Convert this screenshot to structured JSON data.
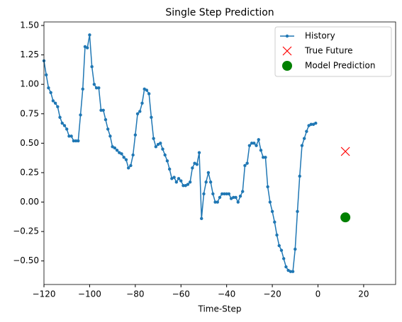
{
  "chart_data": {
    "type": "line",
    "title": "Single Step Prediction",
    "x_label": "Time-Step",
    "series": [
      {
        "name": "History",
        "color": "#1f77b4",
        "marker": "dot-line",
        "x": [
          -120,
          -119,
          -118,
          -117,
          -116,
          -115,
          -114,
          -113,
          -112,
          -111,
          -110,
          -109,
          -108,
          -107,
          -106,
          -105,
          -104,
          -103,
          -102,
          -101,
          -100,
          -99,
          -98,
          -97,
          -96,
          -95,
          -94,
          -93,
          -92,
          -91,
          -90,
          -89,
          -88,
          -87,
          -86,
          -85,
          -84,
          -83,
          -82,
          -81,
          -80,
          -79,
          -78,
          -77,
          -76,
          -75,
          -74,
          -73,
          -72,
          -71,
          -70,
          -69,
          -68,
          -67,
          -66,
          -65,
          -64,
          -63,
          -62,
          -61,
          -60,
          -59,
          -58,
          -57,
          -56,
          -55,
          -54,
          -53,
          -52,
          -51,
          -50,
          -49,
          -48,
          -47,
          -46,
          -45,
          -44,
          -43,
          -42,
          -41,
          -40,
          -39,
          -38,
          -37,
          -36,
          -35,
          -34,
          -33,
          -32,
          -31,
          -30,
          -29,
          -28,
          -27,
          -26,
          -25,
          -24,
          -23,
          -22,
          -21,
          -20,
          -19,
          -18,
          -17,
          -16,
          -15,
          -14,
          -13,
          -12,
          -11,
          -10,
          -9,
          -8,
          -7,
          -6,
          -5,
          -4,
          -3,
          -2,
          -1
        ],
        "values": [
          1.2,
          1.08,
          0.97,
          0.93,
          0.86,
          0.84,
          0.81,
          0.72,
          0.67,
          0.65,
          0.62,
          0.56,
          0.56,
          0.52,
          0.52,
          0.52,
          0.74,
          0.96,
          1.32,
          1.31,
          1.42,
          1.15,
          1.0,
          0.97,
          0.97,
          0.78,
          0.78,
          0.7,
          0.62,
          0.56,
          0.47,
          0.46,
          0.44,
          0.42,
          0.41,
          0.38,
          0.36,
          0.29,
          0.31,
          0.4,
          0.57,
          0.75,
          0.77,
          0.84,
          0.96,
          0.95,
          0.92,
          0.72,
          0.54,
          0.47,
          0.49,
          0.5,
          0.45,
          0.4,
          0.35,
          0.28,
          0.2,
          0.21,
          0.17,
          0.2,
          0.18,
          0.14,
          0.14,
          0.15,
          0.17,
          0.29,
          0.33,
          0.32,
          0.42,
          -0.14,
          0.07,
          0.17,
          0.25,
          0.17,
          0.07,
          0.0,
          0.0,
          0.04,
          0.07,
          0.07,
          0.07,
          0.07,
          0.03,
          0.04,
          0.04,
          0.0,
          0.05,
          0.09,
          0.31,
          0.33,
          0.48,
          0.5,
          0.5,
          0.48,
          0.53,
          0.44,
          0.38,
          0.38,
          0.13,
          0.0,
          -0.08,
          -0.17,
          -0.28,
          -0.37,
          -0.41,
          -0.48,
          -0.55,
          -0.58,
          -0.59,
          -0.59,
          -0.4,
          -0.08,
          0.22,
          0.48,
          0.54,
          0.6,
          0.65,
          0.66,
          0.66,
          0.67
        ]
      },
      {
        "name": "True Future",
        "color": "#ff0000",
        "marker": "x",
        "x": [
          12
        ],
        "values": [
          0.43
        ]
      },
      {
        "name": "Model Prediction",
        "color": "#008000",
        "marker": "o",
        "x": [
          12
        ],
        "values": [
          -0.13
        ]
      }
    ],
    "xlim": [
      -120,
      34
    ],
    "ylim": [
      -0.7,
      1.53
    ],
    "xticks": [
      {
        "value": -120,
        "label": "−120"
      },
      {
        "value": -100,
        "label": "−100"
      },
      {
        "value": -80,
        "label": "−80"
      },
      {
        "value": -60,
        "label": "−60"
      },
      {
        "value": -40,
        "label": "−40"
      },
      {
        "value": -20,
        "label": "−20"
      },
      0,
      20
    ],
    "yticks": [
      {
        "value": -0.5,
        "label": "−0.50"
      },
      {
        "value": -0.25,
        "label": "−0.25"
      },
      {
        "value": 0,
        "label": "0.00"
      },
      {
        "value": 0.25,
        "label": "0.25"
      },
      {
        "value": 0.5,
        "label": "0.50"
      },
      {
        "value": 0.75,
        "label": "0.75"
      },
      {
        "value": 1,
        "label": "1.00"
      },
      {
        "value": 1.25,
        "label": "1.25"
      },
      {
        "value": 1.5,
        "label": "1.50"
      }
    ],
    "legend": "upper right",
    "grid": false
  }
}
